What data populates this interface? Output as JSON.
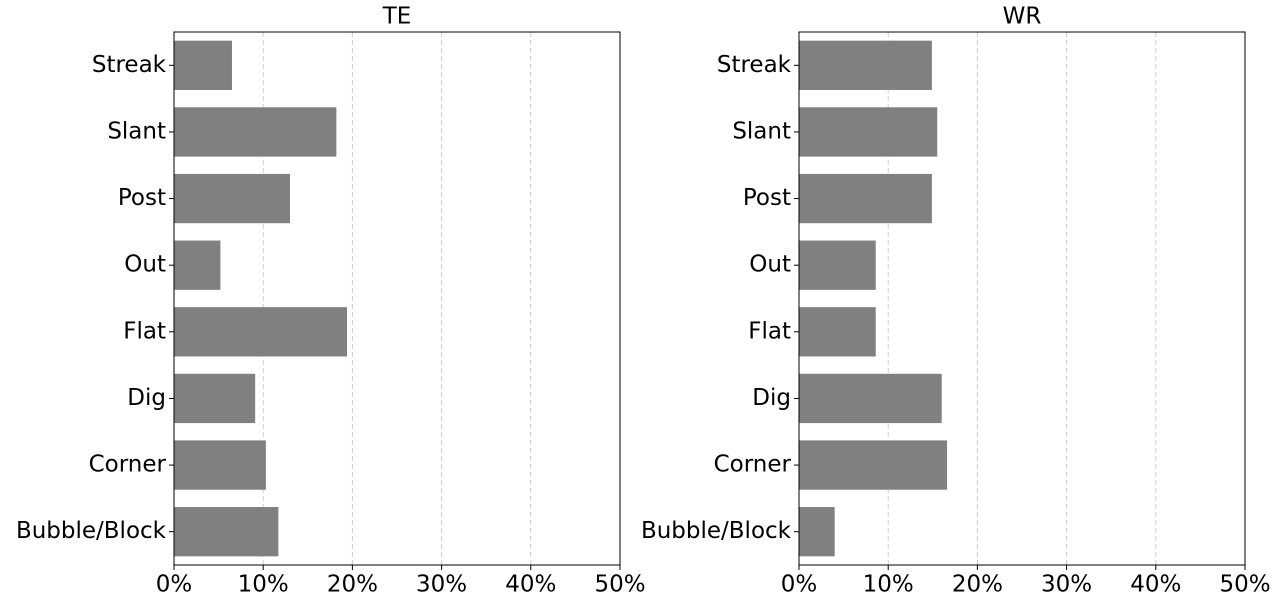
{
  "chart_data": [
    {
      "type": "barh",
      "title": "TE",
      "categories": [
        "Streak",
        "Slant",
        "Post",
        "Out",
        "Flat",
        "Dig",
        "Corner",
        "Bubble/Block"
      ],
      "values": [
        6.5,
        18.2,
        13.0,
        5.2,
        19.4,
        9.1,
        10.3,
        11.7
      ],
      "color": "#808080",
      "xlim": [
        0,
        50
      ],
      "xticks": [
        {
          "value": 0,
          "label": "0%"
        },
        {
          "value": 10,
          "label": "10%"
        },
        {
          "value": 20,
          "label": "20%"
        },
        {
          "value": 30,
          "label": "30%"
        },
        {
          "value": 40,
          "label": "40%"
        },
        {
          "value": 50,
          "label": "50%"
        }
      ],
      "grid": true
    },
    {
      "type": "barh",
      "title": "WR",
      "categories": [
        "Streak",
        "Slant",
        "Post",
        "Out",
        "Flat",
        "Dig",
        "Corner",
        "Bubble/Block"
      ],
      "values": [
        14.9,
        15.5,
        14.9,
        8.6,
        8.6,
        16.0,
        16.6,
        4.0
      ],
      "color": "#808080",
      "xlim": [
        0,
        50
      ],
      "xticks": [
        {
          "value": 0,
          "label": "0%"
        },
        {
          "value": 10,
          "label": "10%"
        },
        {
          "value": 20,
          "label": "20%"
        },
        {
          "value": 30,
          "label": "30%"
        },
        {
          "value": 40,
          "label": "40%"
        },
        {
          "value": 50,
          "label": "50%"
        }
      ],
      "grid": true
    }
  ]
}
